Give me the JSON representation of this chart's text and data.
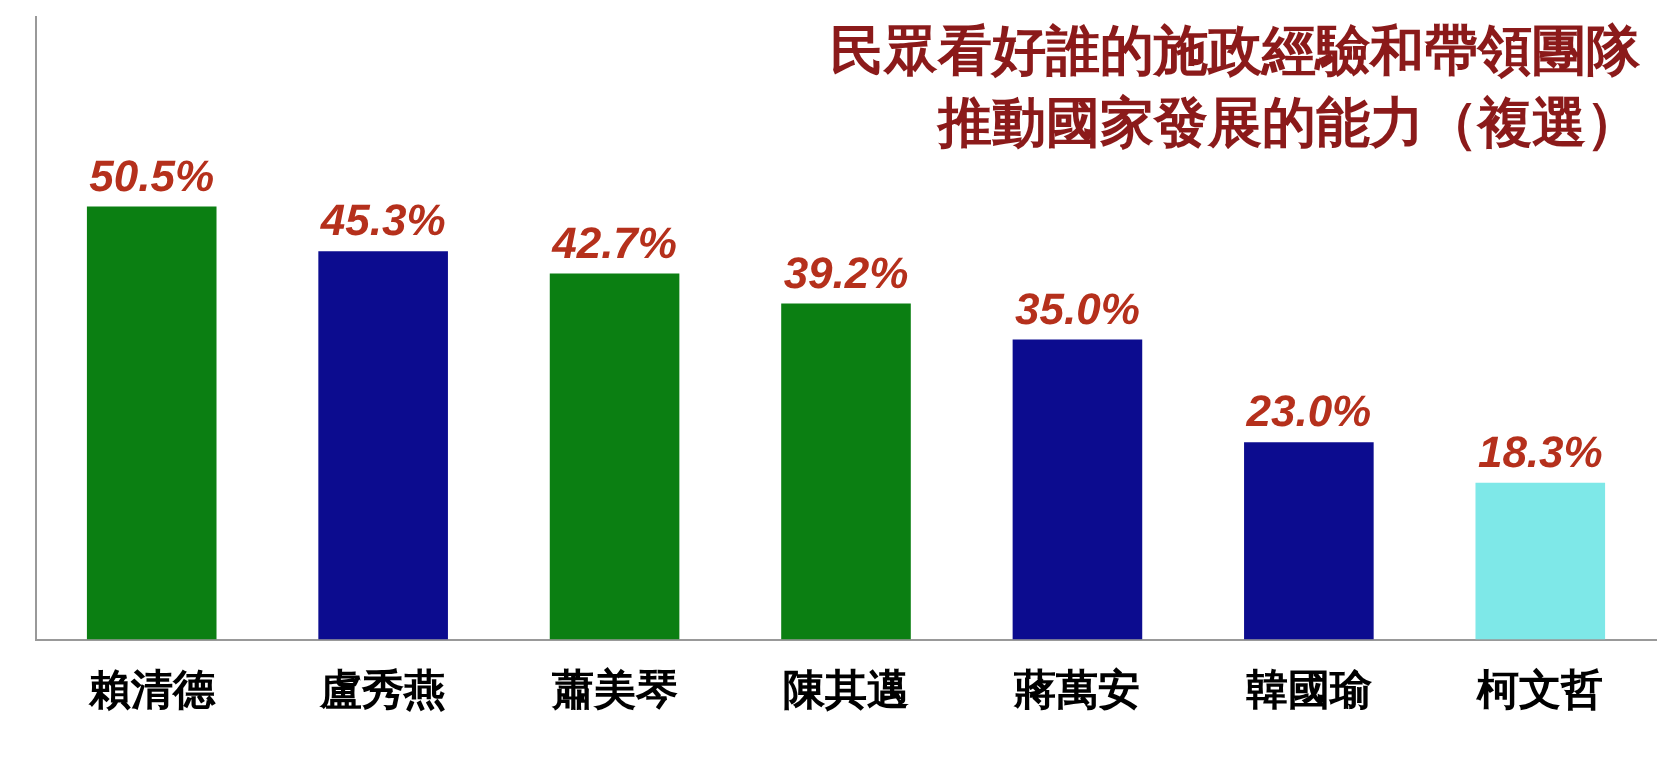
{
  "chart_data": {
    "type": "bar",
    "title": "民眾看好誰的施政經驗和帶領團隊",
    "subtitle": "推動國家發展的能力（複選）",
    "categories": [
      "賴清德",
      "盧秀燕",
      "蕭美琴",
      "陳其邁",
      "蔣萬安",
      "韓國瑜",
      "柯文哲"
    ],
    "values": [
      50.5,
      45.3,
      42.7,
      39.2,
      35.0,
      23.0,
      18.3
    ],
    "colors": [
      "#0b7f12",
      "#0c0c8f",
      "#0b7f12",
      "#0b7f12",
      "#0c0c8f",
      "#0c0c8f",
      "#7ee8e8"
    ],
    "value_labels": [
      "50.5%",
      "45.3%",
      "42.7%",
      "39.2%",
      "35.0%",
      "23.0%",
      "18.3%"
    ],
    "grid": false,
    "legend": false
  }
}
